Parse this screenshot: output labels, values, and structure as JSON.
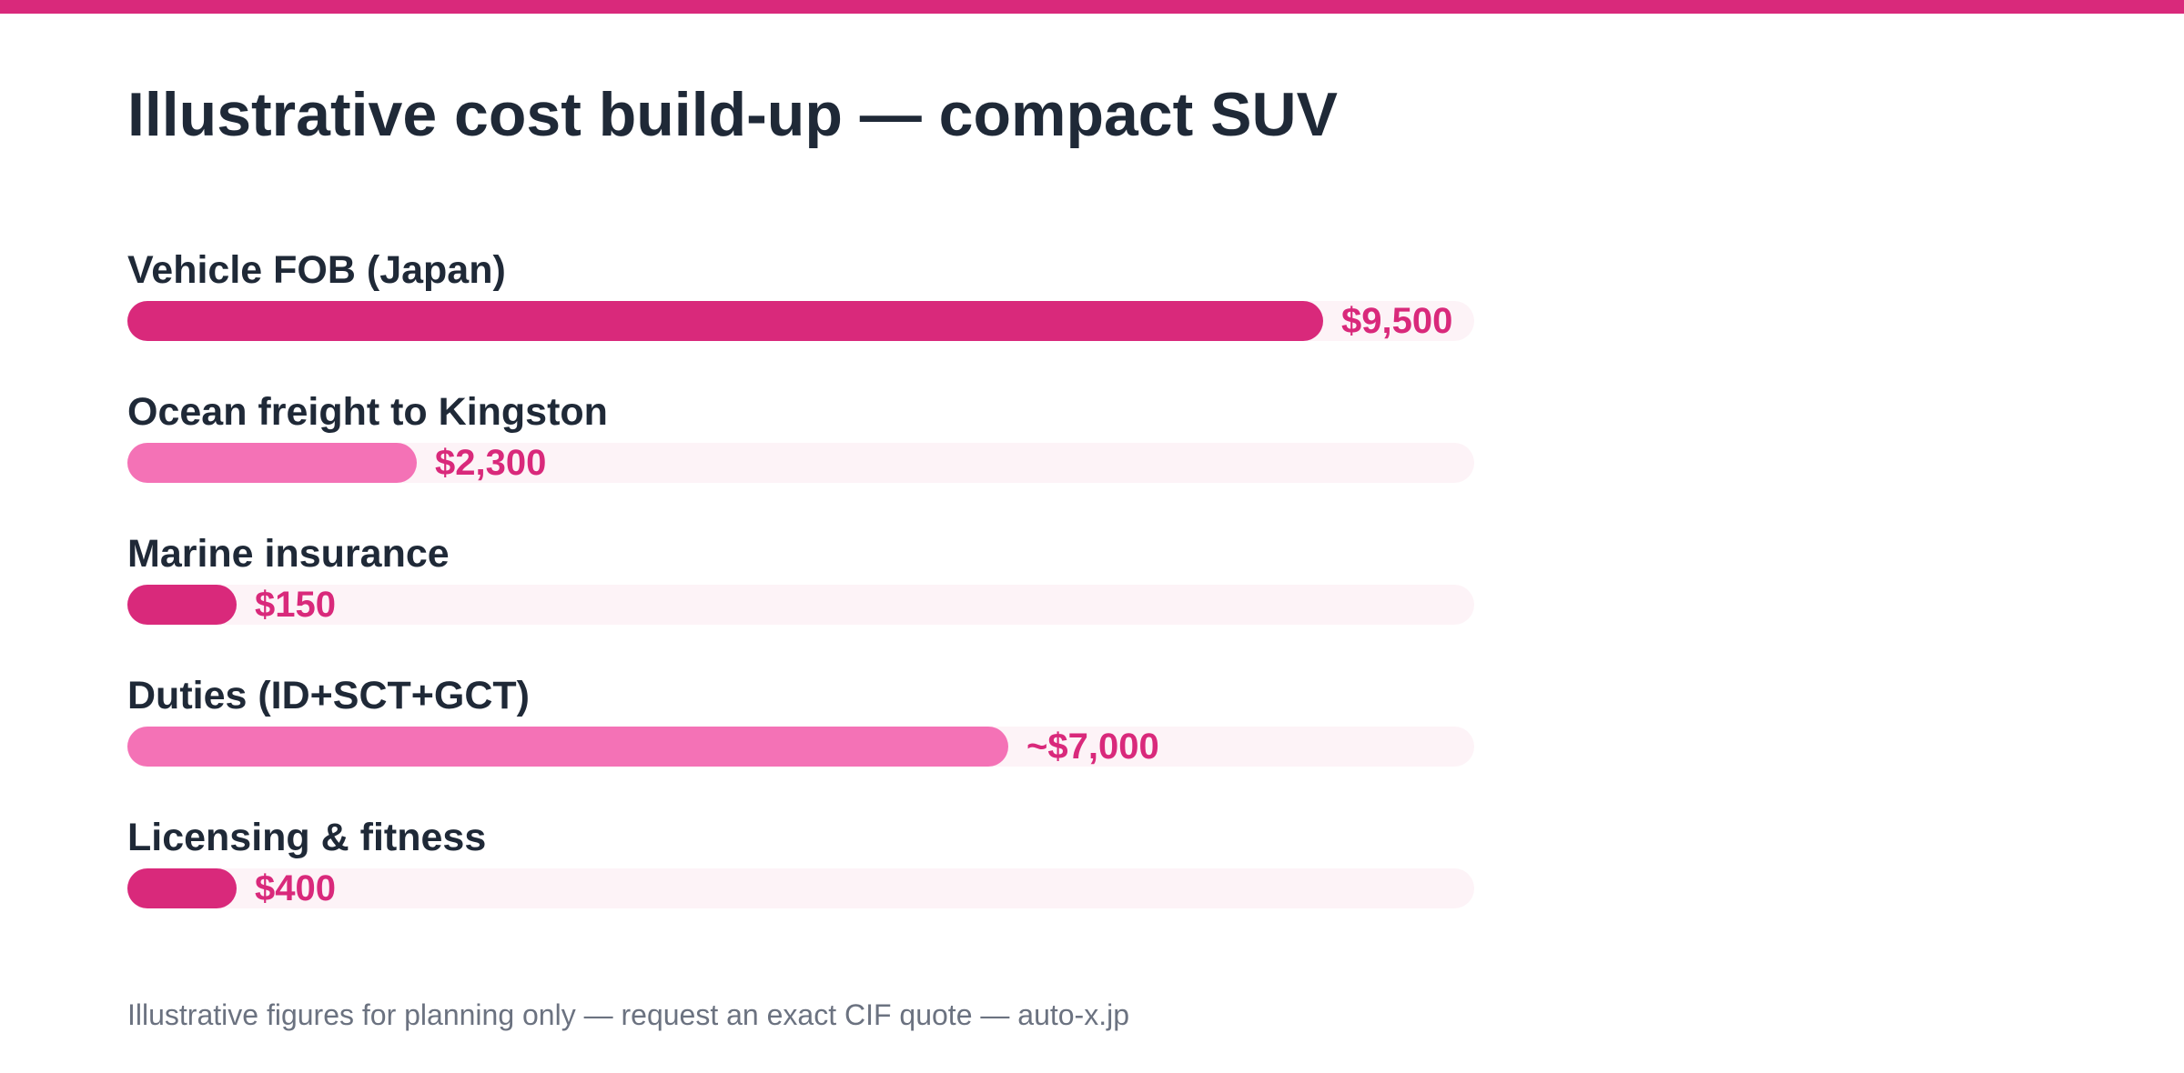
{
  "colors": {
    "accent": "#d9297b",
    "accent_light": "#f472b6",
    "track": "#fdf3f7",
    "title": "#1f2937",
    "footnote": "#6b7280"
  },
  "chart_data": {
    "type": "bar",
    "orientation": "horizontal",
    "title": "Illustrative cost build-up — compact SUV",
    "xlim": [
      0,
      10700
    ],
    "grid": false,
    "categories": [
      "Vehicle FOB (Japan)",
      "Ocean freight to Kingston",
      "Marine insurance",
      "Duties (ID+SCT+GCT)",
      "Licensing & fitness"
    ],
    "values": [
      9500,
      2300,
      150,
      7000,
      400
    ],
    "value_labels": [
      "$9,500",
      "$2,300",
      "$150",
      "~$7,000",
      "$400"
    ],
    "bar_colors": [
      "#d9297b",
      "#f472b6",
      "#d9297b",
      "#f472b6",
      "#d9297b"
    ]
  },
  "footnote": "Illustrative figures for planning only — request an exact CIF quote — auto-x.jp"
}
